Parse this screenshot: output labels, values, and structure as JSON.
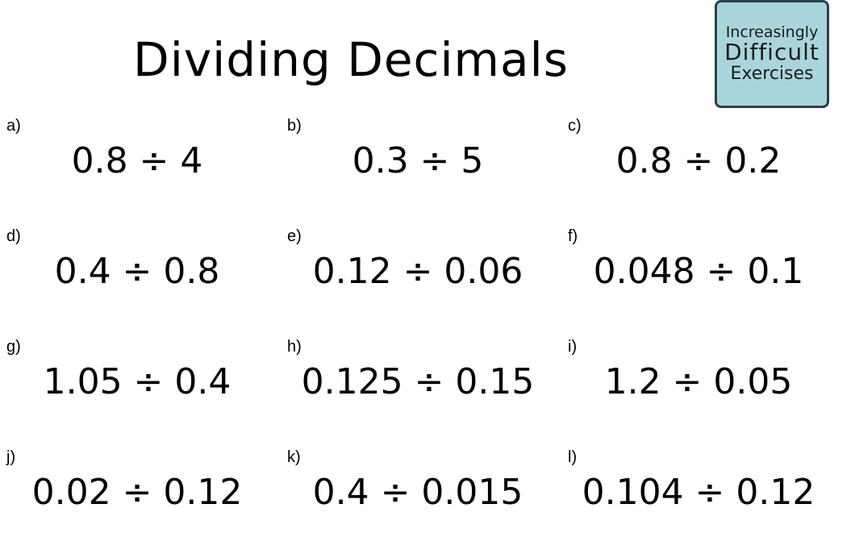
{
  "title": "Dividing Decimals",
  "logo": {
    "line1": "Increasingly",
    "line2": "Difficult",
    "line3": "Exercises"
  },
  "questions": [
    {
      "letter": "a)",
      "expr": "0.8 ÷ 4"
    },
    {
      "letter": "b)",
      "expr": "0.3 ÷ 5"
    },
    {
      "letter": "c)",
      "expr": "0.8 ÷ 0.2"
    },
    {
      "letter": "d)",
      "expr": "0.4 ÷ 0.8"
    },
    {
      "letter": "e)",
      "expr": "0.12 ÷ 0.06"
    },
    {
      "letter": "f)",
      "expr": "0.048 ÷ 0.1"
    },
    {
      "letter": "g)",
      "expr": "1.05 ÷ 0.4"
    },
    {
      "letter": "h)",
      "expr": "0.125 ÷ 0.15"
    },
    {
      "letter": "i)",
      "expr": "1.2 ÷ 0.05"
    },
    {
      "letter": "j)",
      "expr": "0.02 ÷ 0.12"
    },
    {
      "letter": "k)",
      "expr": "0.4 ÷ 0.015"
    },
    {
      "letter": "l)",
      "expr": "0.104 ÷ 0.12"
    }
  ]
}
